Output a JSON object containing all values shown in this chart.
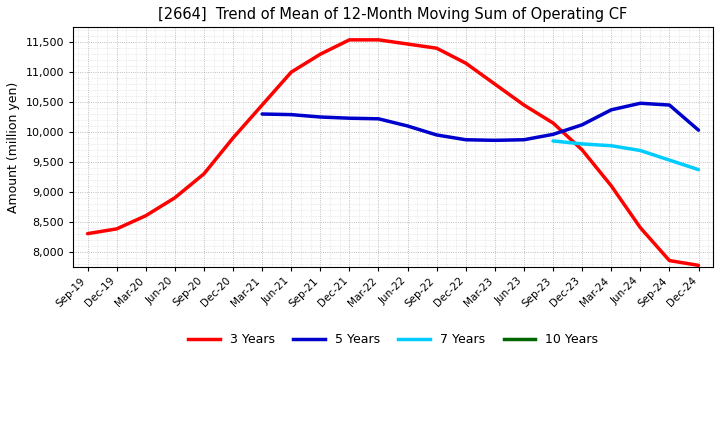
{
  "title": "[2664]  Trend of Mean of 12-Month Moving Sum of Operating CF",
  "ylabel": "Amount (million yen)",
  "background_color": "#ffffff",
  "grid_color": "#aaaaaa",
  "x_labels": [
    "Sep-19",
    "Dec-19",
    "Mar-20",
    "Jun-20",
    "Sep-20",
    "Dec-20",
    "Mar-21",
    "Jun-21",
    "Sep-21",
    "Dec-21",
    "Mar-22",
    "Jun-22",
    "Sep-22",
    "Dec-22",
    "Mar-23",
    "Jun-23",
    "Sep-23",
    "Dec-23",
    "Mar-24",
    "Jun-24",
    "Sep-24",
    "Dec-24"
  ],
  "ylim": [
    7750,
    11750
  ],
  "yticks": [
    8000,
    8500,
    9000,
    9500,
    10000,
    10500,
    11000,
    11500
  ],
  "series": {
    "3 Years": {
      "color": "#ff0000",
      "linewidth": 2.5,
      "data_x": [
        0,
        1,
        2,
        3,
        4,
        5,
        6,
        7,
        8,
        9,
        10,
        11,
        12,
        13,
        14,
        15,
        16,
        17,
        18,
        19,
        20,
        21
      ],
      "data_y": [
        8300,
        8380,
        8600,
        8900,
        9300,
        9900,
        10450,
        11000,
        11300,
        11540,
        11540,
        11470,
        11400,
        11150,
        10800,
        10450,
        10150,
        9700,
        9100,
        8400,
        7850,
        7770
      ]
    },
    "5 Years": {
      "color": "#0000cc",
      "linewidth": 2.5,
      "data_x": [
        6,
        7,
        8,
        9,
        10,
        11,
        12,
        13,
        14,
        15,
        16,
        17,
        18,
        19,
        20,
        21
      ],
      "data_y": [
        10300,
        10290,
        10250,
        10230,
        10220,
        10100,
        9950,
        9870,
        9860,
        9870,
        9960,
        10120,
        10370,
        10480,
        10450,
        10030
      ]
    },
    "7 Years": {
      "color": "#00ccff",
      "linewidth": 2.5,
      "data_x": [
        16,
        17,
        18,
        19,
        20,
        21
      ],
      "data_y": [
        9850,
        9800,
        9770,
        9690,
        9530,
        9370
      ]
    },
    "10 Years": {
      "color": "#006600",
      "linewidth": 2.5,
      "data_x": [],
      "data_y": []
    }
  },
  "legend_labels": [
    "3 Years",
    "5 Years",
    "7 Years",
    "10 Years"
  ],
  "legend_colors": [
    "#ff0000",
    "#0000cc",
    "#00ccff",
    "#006600"
  ]
}
